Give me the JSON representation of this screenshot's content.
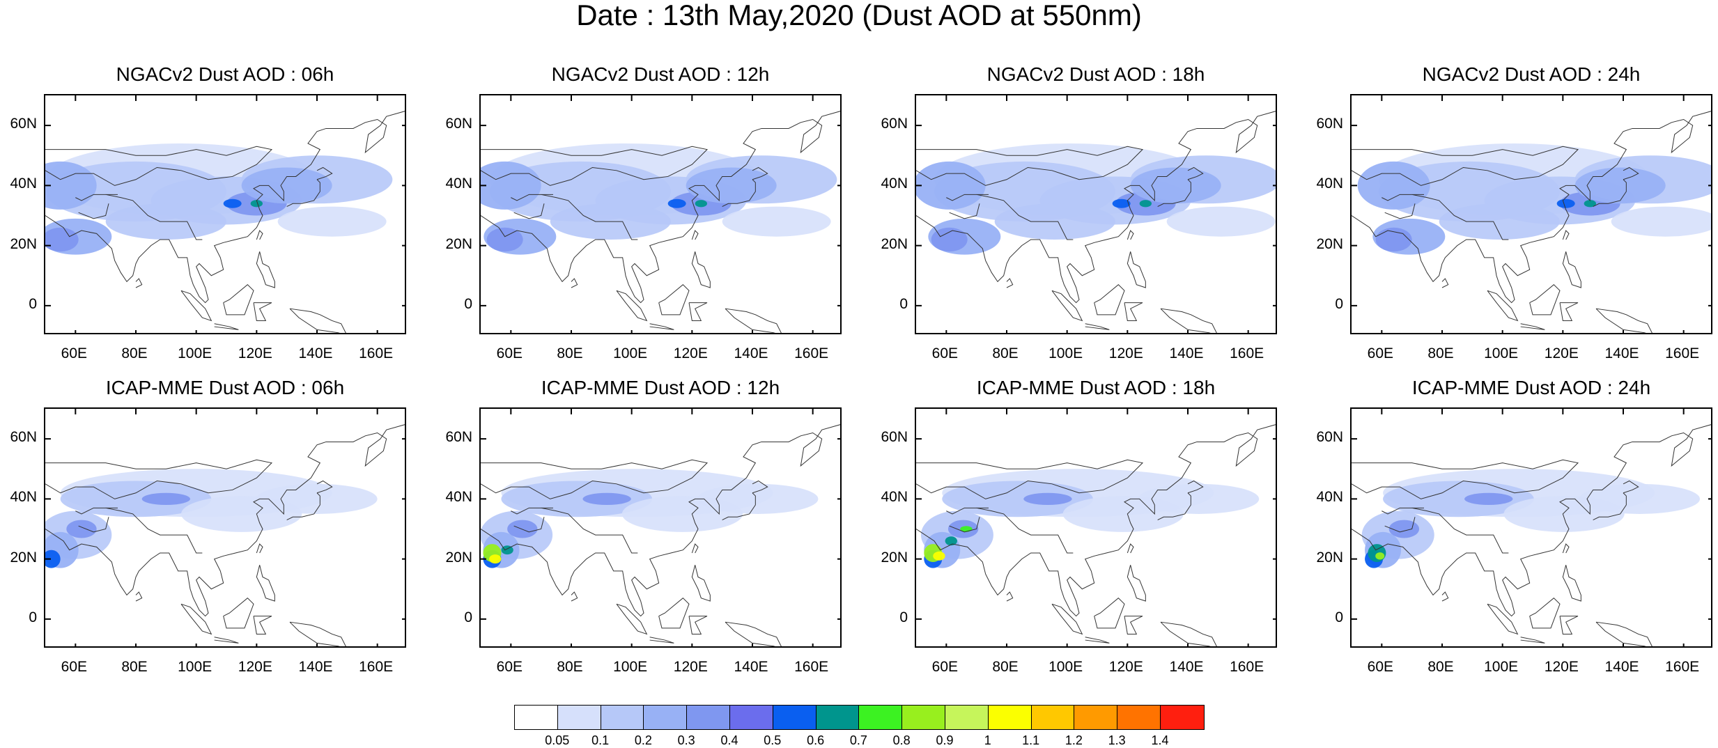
{
  "title": "Date : 13th May,2020 (Dust AOD at 550nm)",
  "panels": [
    {
      "title": "NGACv2 Dust AOD : 06h",
      "model": "NGACv2",
      "hour": "06h",
      "row": 0,
      "col": 0
    },
    {
      "title": "NGACv2 Dust AOD : 12h",
      "model": "NGACv2",
      "hour": "12h",
      "row": 0,
      "col": 1
    },
    {
      "title": "NGACv2 Dust AOD : 18h",
      "model": "NGACv2",
      "hour": "18h",
      "row": 0,
      "col": 2
    },
    {
      "title": "NGACv2 Dust AOD : 24h",
      "model": "NGACv2",
      "hour": "24h",
      "row": 0,
      "col": 3
    },
    {
      "title": "ICAP-MME Dust AOD : 06h",
      "model": "ICAP-MME",
      "hour": "06h",
      "row": 1,
      "col": 0
    },
    {
      "title": "ICAP-MME Dust AOD : 12h",
      "model": "ICAP-MME",
      "hour": "12h",
      "row": 1,
      "col": 1
    },
    {
      "title": "ICAP-MME Dust AOD : 18h",
      "model": "ICAP-MME",
      "hour": "18h",
      "row": 1,
      "col": 2
    },
    {
      "title": "ICAP-MME Dust AOD : 24h",
      "model": "ICAP-MME",
      "hour": "24h",
      "row": 1,
      "col": 3
    }
  ],
  "axes": {
    "lat_ticks": [
      "60N",
      "40N",
      "20N",
      "0"
    ],
    "lon_ticks": [
      "60E",
      "80E",
      "100E",
      "120E",
      "140E",
      "160E"
    ],
    "lat_range": [
      -10,
      70
    ],
    "lon_range": [
      50,
      170
    ]
  },
  "colorbar": {
    "labels": [
      "0.05",
      "0.1",
      "0.2",
      "0.3",
      "0.4",
      "0.5",
      "0.6",
      "0.7",
      "0.8",
      "0.9",
      "1",
      "1.1",
      "1.2",
      "1.3",
      "1.4"
    ],
    "colors": [
      "#ffffff",
      "#d6e0fb",
      "#b6c8f8",
      "#98b1f5",
      "#7f97f0",
      "#6b6ded",
      "#0a5ff0",
      "#00958d",
      "#3cf222",
      "#98ef1e",
      "#c6f55b",
      "#fbff00",
      "#ffc800",
      "#ff9a00",
      "#ff7300",
      "#ff1f0f"
    ]
  }
}
